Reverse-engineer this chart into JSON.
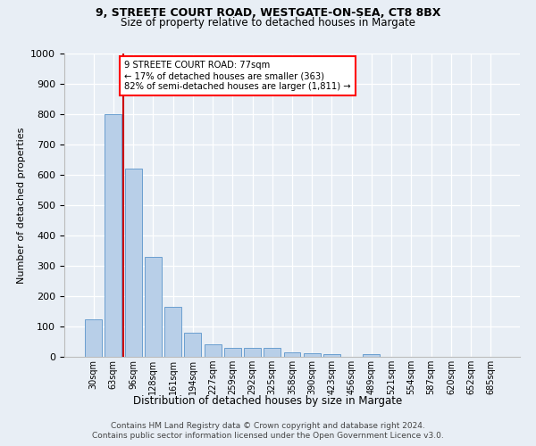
{
  "title1": "9, STREETE COURT ROAD, WESTGATE-ON-SEA, CT8 8BX",
  "title2": "Size of property relative to detached houses in Margate",
  "xlabel": "Distribution of detached houses by size in Margate",
  "ylabel": "Number of detached properties",
  "categories": [
    "30sqm",
    "63sqm",
    "96sqm",
    "128sqm",
    "161sqm",
    "194sqm",
    "227sqm",
    "259sqm",
    "292sqm",
    "325sqm",
    "358sqm",
    "390sqm",
    "423sqm",
    "456sqm",
    "489sqm",
    "521sqm",
    "554sqm",
    "587sqm",
    "620sqm",
    "652sqm",
    "685sqm"
  ],
  "values": [
    125,
    800,
    620,
    330,
    165,
    80,
    42,
    30,
    28,
    28,
    16,
    12,
    10,
    0,
    10,
    0,
    0,
    0,
    0,
    0,
    0
  ],
  "bar_color": "#b8cfe8",
  "bar_edge_color": "#6a9fd0",
  "property_line_x": 1.5,
  "annotation_text": "9 STREETE COURT ROAD: 77sqm\n← 17% of detached houses are smaller (363)\n82% of semi-detached houses are larger (1,811) →",
  "annotation_box_color": "white",
  "annotation_box_edge": "red",
  "vline_color": "#cc0000",
  "footer1": "Contains HM Land Registry data © Crown copyright and database right 2024.",
  "footer2": "Contains public sector information licensed under the Open Government Licence v3.0.",
  "bg_color": "#e8eef5",
  "ylim": [
    0,
    1000
  ],
  "yticks": [
    0,
    100,
    200,
    300,
    400,
    500,
    600,
    700,
    800,
    900,
    1000
  ]
}
